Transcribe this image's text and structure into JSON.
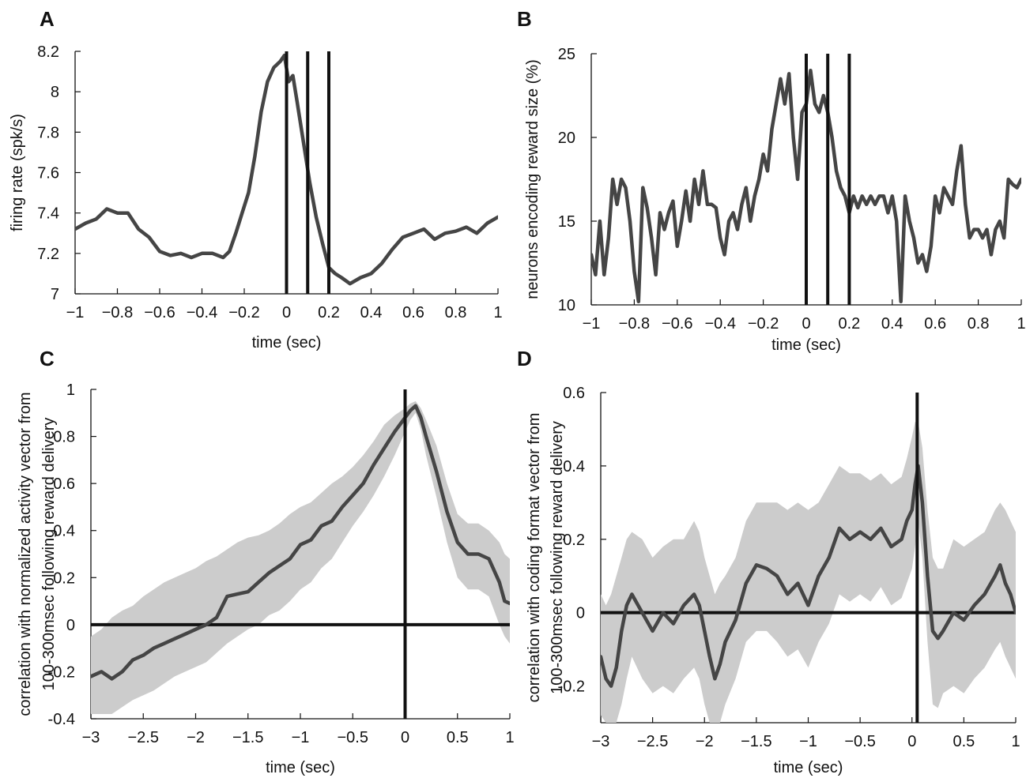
{
  "chart_data": [
    {
      "panel": "A",
      "type": "line",
      "xlabel": "time (sec)",
      "ylabel": "firing rate (spk/s)",
      "xlim": [
        -1,
        1
      ],
      "ylim": [
        7,
        8.2
      ],
      "xticks": [
        -1,
        -0.8,
        -0.6,
        -0.4,
        -0.2,
        0,
        0.2,
        0.4,
        0.6,
        0.8,
        1
      ],
      "xtick_labels": [
        "−1",
        "−0.8",
        "−0.6",
        "−0.4",
        "−0.2",
        "0",
        "0.2",
        "0.4",
        "0.6",
        "0.8",
        "1"
      ],
      "yticks": [
        7,
        7.2,
        7.4,
        7.6,
        7.8,
        8,
        8.2
      ],
      "ytick_labels": [
        "7",
        "7.2",
        "7.4",
        "7.6",
        "7.8",
        "8",
        "8.2"
      ],
      "vlines": [
        0,
        0.1,
        0.2
      ],
      "hlines": [],
      "line_color": "#454545",
      "series": [
        {
          "x": [
            -1,
            -0.95,
            -0.9,
            -0.85,
            -0.8,
            -0.75,
            -0.7,
            -0.65,
            -0.6,
            -0.55,
            -0.5,
            -0.45,
            -0.4,
            -0.35,
            -0.3,
            -0.27,
            -0.24,
            -0.21,
            -0.18,
            -0.15,
            -0.12,
            -0.09,
            -0.06,
            -0.03,
            -0.01,
            0.01,
            0.03,
            0.05,
            0.08,
            0.11,
            0.14,
            0.17,
            0.2,
            0.23,
            0.26,
            0.3,
            0.35,
            0.4,
            0.45,
            0.5,
            0.55,
            0.6,
            0.65,
            0.7,
            0.75,
            0.8,
            0.85,
            0.9,
            0.95,
            1
          ],
          "y": [
            7.32,
            7.35,
            7.37,
            7.42,
            7.4,
            7.4,
            7.32,
            7.28,
            7.21,
            7.19,
            7.2,
            7.18,
            7.2,
            7.2,
            7.18,
            7.21,
            7.3,
            7.4,
            7.5,
            7.68,
            7.9,
            8.05,
            8.12,
            8.15,
            8.18,
            8.05,
            8.08,
            7.95,
            7.75,
            7.55,
            7.38,
            7.25,
            7.13,
            7.1,
            7.08,
            7.05,
            7.08,
            7.1,
            7.15,
            7.22,
            7.28,
            7.3,
            7.32,
            7.27,
            7.3,
            7.31,
            7.33,
            7.3,
            7.35,
            7.38
          ]
        }
      ]
    },
    {
      "panel": "B",
      "type": "line",
      "xlabel": "time (sec)",
      "ylabel": "neurons encoding reward size (%)",
      "xlim": [
        -1,
        1
      ],
      "ylim": [
        10,
        25
      ],
      "xticks": [
        -1,
        -0.8,
        -0.6,
        -0.4,
        -0.2,
        0,
        0.2,
        0.4,
        0.6,
        0.8,
        1
      ],
      "xtick_labels": [
        "−1",
        "−0.8",
        "−0.6",
        "−0.4",
        "−0.2",
        "0",
        "0.2",
        "0.4",
        "0.6",
        "0.8",
        "1"
      ],
      "yticks": [
        10,
        15,
        20,
        25
      ],
      "ytick_labels": [
        "10",
        "15",
        "20",
        "25"
      ],
      "vlines": [
        0,
        0.1,
        0.2
      ],
      "hlines": [],
      "line_color": "#454545",
      "series": [
        {
          "x": [
            -1,
            -0.98,
            -0.96,
            -0.94,
            -0.92,
            -0.9,
            -0.88,
            -0.86,
            -0.84,
            -0.82,
            -0.8,
            -0.78,
            -0.76,
            -0.74,
            -0.72,
            -0.7,
            -0.68,
            -0.66,
            -0.64,
            -0.62,
            -0.6,
            -0.58,
            -0.56,
            -0.54,
            -0.52,
            -0.5,
            -0.48,
            -0.46,
            -0.44,
            -0.42,
            -0.4,
            -0.38,
            -0.36,
            -0.34,
            -0.32,
            -0.3,
            -0.28,
            -0.26,
            -0.24,
            -0.22,
            -0.2,
            -0.18,
            -0.16,
            -0.14,
            -0.12,
            -0.1,
            -0.08,
            -0.06,
            -0.04,
            -0.02,
            0,
            0.02,
            0.04,
            0.06,
            0.08,
            0.1,
            0.12,
            0.14,
            0.16,
            0.18,
            0.2,
            0.22,
            0.24,
            0.26,
            0.28,
            0.3,
            0.32,
            0.34,
            0.36,
            0.38,
            0.4,
            0.42,
            0.44,
            0.46,
            0.48,
            0.5,
            0.52,
            0.54,
            0.56,
            0.58,
            0.6,
            0.62,
            0.64,
            0.66,
            0.68,
            0.7,
            0.72,
            0.74,
            0.76,
            0.78,
            0.8,
            0.82,
            0.84,
            0.86,
            0.88,
            0.9,
            0.92,
            0.94,
            0.96,
            0.98,
            1
          ],
          "y": [
            13,
            11.8,
            15,
            11.8,
            14,
            17.5,
            16,
            17.5,
            17,
            15,
            12,
            10.2,
            17,
            15.8,
            14,
            11.8,
            15.5,
            14.5,
            15.5,
            16.2,
            13.5,
            15,
            16.8,
            15,
            17.5,
            16,
            18,
            16,
            16,
            15.8,
            14,
            13,
            15,
            15.5,
            14.5,
            16,
            17,
            15,
            16.5,
            17.5,
            19,
            18,
            20.5,
            22,
            23.5,
            22,
            23.8,
            20,
            17.5,
            21.5,
            22,
            24,
            22,
            21.5,
            22.5,
            21.5,
            20,
            18,
            17,
            16.5,
            15.5,
            16.5,
            15.8,
            16.5,
            16,
            16.5,
            16,
            16.5,
            16.5,
            15.5,
            16.5,
            15,
            10.2,
            16.5,
            15,
            14,
            12.5,
            13,
            12,
            13.5,
            16.5,
            15.5,
            17,
            16.5,
            16,
            18,
            19.5,
            16,
            14,
            14.5,
            14.5,
            14,
            14.5,
            13,
            14.5,
            15,
            14,
            17.5,
            17.2,
            17,
            17.5
          ],
          "note_removed": false
        }
      ]
    },
    {
      "panel": "C",
      "type": "line",
      "xlabel": "time (sec)",
      "ylabel_lines": [
        "correlation with normalized activity vector from",
        "100-300msec following reward delivery"
      ],
      "xlim": [
        -3,
        1
      ],
      "ylim": [
        -0.4,
        1
      ],
      "xticks": [
        -3,
        -2.5,
        -2,
        -1.5,
        -1,
        -0.5,
        0,
        0.5,
        1
      ],
      "xtick_labels": [
        "−3",
        "−2.5",
        "−2",
        "−1.5",
        "−1",
        "−0.5",
        "0",
        "0.5",
        "1"
      ],
      "yticks": [
        -0.4,
        -0.2,
        0,
        0.2,
        0.4,
        0.6,
        0.8,
        1
      ],
      "ytick_labels": [
        "-0.4",
        "-0.2",
        "0",
        "0.2",
        "0.4",
        "0.6",
        "0.8",
        "1"
      ],
      "vlines": [
        0
      ],
      "hlines": [
        0
      ],
      "line_color": "#454545",
      "band_color": "#cccccc",
      "series": [
        {
          "x": [
            -3,
            -2.9,
            -2.8,
            -2.7,
            -2.6,
            -2.5,
            -2.4,
            -2.3,
            -2.2,
            -2.1,
            -2.0,
            -1.9,
            -1.8,
            -1.7,
            -1.6,
            -1.5,
            -1.4,
            -1.3,
            -1.2,
            -1.1,
            -1.0,
            -0.9,
            -0.8,
            -0.7,
            -0.6,
            -0.5,
            -0.4,
            -0.3,
            -0.2,
            -0.1,
            0.0,
            0.05,
            0.1,
            0.15,
            0.2,
            0.3,
            0.4,
            0.5,
            0.6,
            0.7,
            0.8,
            0.9,
            0.95,
            1.0
          ],
          "y": [
            -0.22,
            -0.2,
            -0.23,
            -0.2,
            -0.15,
            -0.13,
            -0.1,
            -0.08,
            -0.06,
            -0.04,
            -0.02,
            0.0,
            0.03,
            0.12,
            0.13,
            0.14,
            0.18,
            0.22,
            0.25,
            0.28,
            0.34,
            0.36,
            0.42,
            0.44,
            0.5,
            0.55,
            0.6,
            0.68,
            0.75,
            0.82,
            0.88,
            0.91,
            0.93,
            0.88,
            0.8,
            0.65,
            0.48,
            0.35,
            0.3,
            0.3,
            0.28,
            0.18,
            0.1,
            0.09
          ],
          "upper": [
            -0.05,
            -0.02,
            0.03,
            0.06,
            0.08,
            0.12,
            0.15,
            0.18,
            0.2,
            0.22,
            0.24,
            0.27,
            0.29,
            0.32,
            0.35,
            0.37,
            0.38,
            0.4,
            0.43,
            0.47,
            0.5,
            0.52,
            0.56,
            0.6,
            0.63,
            0.67,
            0.72,
            0.78,
            0.85,
            0.89,
            0.92,
            0.94,
            0.95,
            0.92,
            0.87,
            0.76,
            0.6,
            0.47,
            0.43,
            0.43,
            0.4,
            0.35,
            0.3,
            0.28
          ],
          "lower": [
            -0.38,
            -0.38,
            -0.38,
            -0.35,
            -0.32,
            -0.3,
            -0.28,
            -0.25,
            -0.22,
            -0.2,
            -0.18,
            -0.16,
            -0.12,
            -0.08,
            -0.05,
            -0.02,
            0.0,
            0.04,
            0.06,
            0.1,
            0.15,
            0.18,
            0.24,
            0.28,
            0.35,
            0.42,
            0.48,
            0.55,
            0.63,
            0.72,
            0.82,
            0.87,
            0.9,
            0.83,
            0.72,
            0.54,
            0.35,
            0.2,
            0.15,
            0.15,
            0.12,
            0.0,
            -0.05,
            -0.08
          ]
        }
      ]
    },
    {
      "panel": "D",
      "type": "line",
      "xlabel": "time (sec)",
      "ylabel_lines": [
        "correlation with coding format vector from",
        "100-300msec following reward delivery"
      ],
      "xlim": [
        -3,
        1
      ],
      "ylim": [
        -0.3,
        0.6
      ],
      "xticks": [
        -3,
        -2.5,
        -2,
        -1.5,
        -1,
        -0.5,
        0,
        0.5,
        1
      ],
      "xtick_labels": [
        "−3",
        "−2.5",
        "−2",
        "−1.5",
        "−1",
        "−0.5",
        "0",
        "0.5",
        "1"
      ],
      "yticks": [
        -0.2,
        0,
        0.2,
        0.4,
        0.6
      ],
      "ytick_labels": [
        "-0.2",
        "0",
        "0.2",
        "0.4",
        "0.6"
      ],
      "vlines": [
        0.05
      ],
      "hlines": [
        0
      ],
      "line_color": "#454545",
      "band_color": "#cccccc",
      "series": [
        {
          "x": [
            -3,
            -2.95,
            -2.9,
            -2.85,
            -2.8,
            -2.75,
            -2.7,
            -2.6,
            -2.5,
            -2.4,
            -2.3,
            -2.2,
            -2.1,
            -2.05,
            -2.0,
            -1.95,
            -1.9,
            -1.85,
            -1.8,
            -1.7,
            -1.6,
            -1.5,
            -1.4,
            -1.3,
            -1.2,
            -1.1,
            -1.0,
            -0.9,
            -0.8,
            -0.7,
            -0.6,
            -0.5,
            -0.4,
            -0.3,
            -0.2,
            -0.1,
            -0.05,
            0.0,
            0.03,
            0.06,
            0.1,
            0.15,
            0.2,
            0.25,
            0.3,
            0.4,
            0.5,
            0.6,
            0.7,
            0.8,
            0.85,
            0.9,
            0.95,
            1.0
          ],
          "y": [
            -0.12,
            -0.18,
            -0.2,
            -0.15,
            -0.05,
            0.02,
            0.05,
            0.0,
            -0.05,
            0.0,
            -0.03,
            0.02,
            0.05,
            0.02,
            -0.05,
            -0.12,
            -0.18,
            -0.14,
            -0.08,
            -0.02,
            0.08,
            0.13,
            0.12,
            0.1,
            0.05,
            0.08,
            0.02,
            0.1,
            0.15,
            0.23,
            0.2,
            0.22,
            0.2,
            0.23,
            0.18,
            0.2,
            0.25,
            0.28,
            0.35,
            0.4,
            0.3,
            0.1,
            -0.05,
            -0.07,
            -0.05,
            0.0,
            -0.02,
            0.02,
            0.05,
            0.1,
            0.13,
            0.08,
            0.05,
            0.0
          ],
          "upper": [
            0.05,
            0.02,
            0.05,
            0.1,
            0.15,
            0.2,
            0.22,
            0.2,
            0.15,
            0.18,
            0.2,
            0.2,
            0.25,
            0.22,
            0.15,
            0.1,
            0.05,
            0.08,
            0.1,
            0.15,
            0.25,
            0.3,
            0.3,
            0.3,
            0.28,
            0.3,
            0.28,
            0.3,
            0.35,
            0.4,
            0.38,
            0.38,
            0.36,
            0.38,
            0.35,
            0.37,
            0.42,
            0.48,
            0.52,
            0.52,
            0.45,
            0.28,
            0.15,
            0.12,
            0.12,
            0.2,
            0.18,
            0.2,
            0.22,
            0.28,
            0.3,
            0.28,
            0.25,
            0.22
          ],
          "lower": [
            -0.28,
            -0.3,
            -0.3,
            -0.3,
            -0.25,
            -0.18,
            -0.12,
            -0.18,
            -0.22,
            -0.2,
            -0.22,
            -0.18,
            -0.15,
            -0.18,
            -0.25,
            -0.3,
            -0.3,
            -0.3,
            -0.25,
            -0.18,
            -0.08,
            -0.05,
            -0.05,
            -0.08,
            -0.12,
            -0.1,
            -0.15,
            -0.08,
            -0.03,
            0.05,
            0.03,
            0.05,
            0.03,
            0.07,
            0.02,
            0.04,
            0.08,
            0.12,
            0.18,
            0.25,
            0.15,
            -0.08,
            -0.25,
            -0.26,
            -0.22,
            -0.2,
            -0.22,
            -0.18,
            -0.15,
            -0.1,
            -0.08,
            -0.12,
            -0.15,
            -0.18
          ]
        }
      ]
    }
  ]
}
